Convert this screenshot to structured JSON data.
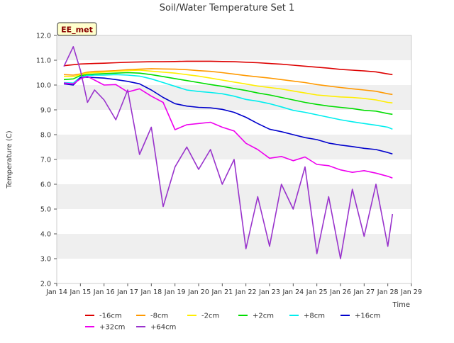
{
  "chart_data": {
    "type": "line",
    "title": "Soil/Water Temperature Set 1",
    "xlabel": "Time",
    "ylabel": "Temperature (C)",
    "ylim": [
      2.0,
      12.0
    ],
    "xlim": [
      "2018-01-14",
      "2018-01-29"
    ],
    "yticks": [
      "2.0",
      "3.0",
      "4.0",
      "5.0",
      "6.0",
      "7.0",
      "8.0",
      "9.0",
      "10.0",
      "11.0",
      "12.0"
    ],
    "xticks": [
      "Jan 14",
      "Jan 15",
      "Jan 16",
      "Jan 17",
      "Jan 18",
      "Jan 19",
      "Jan 20",
      "Jan 21",
      "Jan 22",
      "Jan 23",
      "Jan 24",
      "Jan 25",
      "Jan 26",
      "Jan 27",
      "Jan 28",
      "Jan 29"
    ],
    "annotation": "EE_met",
    "grid": "horizontal bands",
    "legend_position": "bottom",
    "x_days": [
      14.3,
      14.7,
      15.0,
      15.3,
      15.6,
      16.0,
      16.5,
      17.0,
      17.5,
      18.0,
      18.5,
      19.0,
      19.5,
      20.0,
      20.5,
      21.0,
      21.5,
      22.0,
      22.5,
      23.0,
      23.5,
      24.0,
      24.5,
      25.0,
      25.5,
      26.0,
      26.5,
      27.0,
      27.5,
      28.0,
      28.2
    ],
    "series": [
      {
        "name": "-16cm",
        "color": "#dd0000",
        "values": [
          10.78,
          10.82,
          10.85,
          10.86,
          10.87,
          10.88,
          10.9,
          10.92,
          10.93,
          10.94,
          10.94,
          10.95,
          10.96,
          10.96,
          10.96,
          10.95,
          10.94,
          10.92,
          10.9,
          10.87,
          10.84,
          10.8,
          10.76,
          10.72,
          10.68,
          10.63,
          10.6,
          10.57,
          10.53,
          10.45,
          10.42
        ]
      },
      {
        "name": "-8cm",
        "color": "#ff9900",
        "values": [
          10.42,
          10.4,
          10.45,
          10.52,
          10.55,
          10.56,
          10.58,
          10.62,
          10.64,
          10.66,
          10.65,
          10.64,
          10.62,
          10.58,
          10.55,
          10.5,
          10.44,
          10.38,
          10.33,
          10.28,
          10.22,
          10.16,
          10.1,
          10.02,
          9.96,
          9.9,
          9.85,
          9.8,
          9.75,
          9.65,
          9.62
        ]
      },
      {
        "name": "-2cm",
        "color": "#ffee00",
        "values": [
          10.35,
          10.34,
          10.42,
          10.48,
          10.5,
          10.52,
          10.55,
          10.58,
          10.6,
          10.56,
          10.52,
          10.48,
          10.42,
          10.36,
          10.28,
          10.2,
          10.12,
          10.04,
          9.96,
          9.9,
          9.84,
          9.76,
          9.68,
          9.6,
          9.56,
          9.52,
          9.5,
          9.46,
          9.4,
          9.3,
          9.28
        ]
      },
      {
        "name": "+2cm",
        "color": "#00dd00",
        "values": [
          10.22,
          10.25,
          10.38,
          10.42,
          10.44,
          10.46,
          10.48,
          10.5,
          10.48,
          10.42,
          10.34,
          10.26,
          10.18,
          10.1,
          10.02,
          9.95,
          9.86,
          9.78,
          9.68,
          9.6,
          9.5,
          9.4,
          9.3,
          9.22,
          9.15,
          9.1,
          9.05,
          8.98,
          8.95,
          8.85,
          8.82
        ]
      },
      {
        "name": "+8cm",
        "color": "#00eeee",
        "values": [
          10.1,
          10.08,
          10.32,
          10.38,
          10.4,
          10.4,
          10.42,
          10.4,
          10.36,
          10.25,
          10.1,
          9.95,
          9.8,
          9.74,
          9.7,
          9.65,
          9.55,
          9.42,
          9.35,
          9.25,
          9.12,
          8.98,
          8.9,
          8.8,
          8.7,
          8.6,
          8.52,
          8.45,
          8.38,
          8.3,
          8.22
        ]
      },
      {
        "name": "+16cm",
        "color": "#0000cc",
        "values": [
          10.05,
          10.0,
          10.3,
          10.32,
          10.3,
          10.28,
          10.22,
          10.15,
          10.05,
          9.8,
          9.5,
          9.25,
          9.15,
          9.1,
          9.08,
          9.02,
          8.9,
          8.7,
          8.45,
          8.22,
          8.12,
          8.0,
          7.88,
          7.8,
          7.66,
          7.58,
          7.52,
          7.45,
          7.4,
          7.28,
          7.22
        ]
      },
      {
        "name": "+32cm",
        "color": "#ee00ee",
        "values": [
          10.08,
          10.05,
          10.25,
          10.35,
          10.2,
          10.0,
          10.02,
          9.72,
          9.85,
          9.55,
          9.3,
          8.2,
          8.4,
          8.45,
          8.5,
          8.3,
          8.15,
          7.65,
          7.4,
          7.05,
          7.12,
          6.95,
          7.1,
          6.8,
          6.75,
          6.58,
          6.48,
          6.55,
          6.45,
          6.32,
          6.25
        ]
      },
      {
        "name": "+64cm",
        "color": "#9933cc",
        "values": [
          10.75,
          11.55,
          10.6,
          9.3,
          9.8,
          9.4,
          8.6,
          9.8,
          7.2,
          8.3,
          5.1,
          6.7,
          7.5,
          6.6,
          7.4,
          6.0,
          7.0,
          3.4,
          5.5,
          3.5,
          6.0,
          5.0,
          6.7,
          3.2,
          5.5,
          3.0,
          5.8,
          3.9,
          6.0,
          3.5,
          4.8
        ]
      }
    ]
  }
}
